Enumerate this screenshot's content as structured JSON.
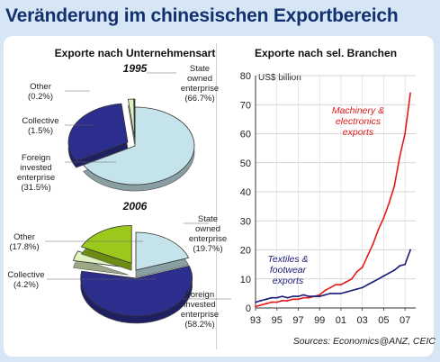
{
  "title": "Veränderung im chinesischen Exportbereich",
  "chart_data": [
    {
      "type": "pie",
      "title": "Exporte nach Unternehmensart",
      "subtitle": "1995",
      "slices": [
        {
          "label": [
            "State",
            "owned",
            "enterprise"
          ],
          "value": 66.7,
          "display": "(66.7%)",
          "color": "#c5e3ea",
          "exploded": false
        },
        {
          "label": [
            "Foreign",
            "invested",
            "enterprise"
          ],
          "value": 31.5,
          "display": "(31.5%)",
          "color": "#2b2e8c",
          "exploded": true
        },
        {
          "label": [
            "Collective"
          ],
          "value": 1.5,
          "display": "(1.5%)",
          "color": "#e0f2c0",
          "exploded": true
        },
        {
          "label": [
            "Other"
          ],
          "value": 0.2,
          "display": "(0.2%)",
          "color": "#9bc81c",
          "exploded": true
        }
      ]
    },
    {
      "type": "pie",
      "subtitle": "2006",
      "slices": [
        {
          "label": [
            "State",
            "owned",
            "enterprise"
          ],
          "value": 19.7,
          "display": "(19.7%)",
          "color": "#c5e3ea",
          "exploded": false
        },
        {
          "label": [
            "Foreign",
            "invested",
            "enterprise"
          ],
          "value": 58.2,
          "display": "(58.2%)",
          "color": "#2b2e8c",
          "exploded": true
        },
        {
          "label": [
            "Collective"
          ],
          "value": 4.2,
          "display": "(4.2%)",
          "color": "#e0f2c0",
          "exploded": true
        },
        {
          "label": [
            "Other"
          ],
          "value": 17.8,
          "display": "(17.8%)",
          "color": "#9bc81c",
          "exploded": true
        }
      ]
    },
    {
      "type": "line",
      "title": "Exporte nach sel. Branchen",
      "ylabel": "US$ billion",
      "ylim": [
        0,
        80
      ],
      "yticks": [
        0,
        10,
        20,
        30,
        40,
        50,
        60,
        70,
        80
      ],
      "xlim": [
        1993,
        2008
      ],
      "xticks": [
        {
          "v": 1993,
          "l": "93"
        },
        {
          "v": 1995,
          "l": "95"
        },
        {
          "v": 1997,
          "l": "97"
        },
        {
          "v": 1999,
          "l": "99"
        },
        {
          "v": 2001,
          "l": "01"
        },
        {
          "v": 2003,
          "l": "03"
        },
        {
          "v": 2005,
          "l": "05"
        },
        {
          "v": 2007,
          "l": "07"
        }
      ],
      "grid": true,
      "source": "Sources: Economics@ANZ, CEIC",
      "series": [
        {
          "name": [
            "Machinery &",
            "electronics",
            "exports"
          ],
          "color": "#e01b1b",
          "x": [
            1993,
            1993.5,
            1994,
            1994.5,
            1995,
            1995.5,
            1996,
            1996.5,
            1997,
            1997.5,
            1998,
            1998.5,
            1999,
            1999.5,
            2000,
            2000.5,
            2001,
            2001.5,
            2002,
            2002.5,
            2003,
            2003.5,
            2004,
            2004.5,
            2005,
            2005.5,
            2006,
            2006.5,
            2007,
            2007.5
          ],
          "y": [
            0.5,
            1.0,
            1.5,
            2.0,
            2.0,
            2.5,
            2.5,
            3.0,
            3.0,
            3.5,
            3.5,
            4.0,
            4.5,
            6.0,
            7.0,
            8.0,
            8.0,
            9.0,
            10.0,
            12.5,
            14.0,
            18.0,
            22.0,
            27.0,
            31.0,
            36.0,
            42.0,
            52.0,
            60.0,
            74.0
          ]
        },
        {
          "name": [
            "Textiles &",
            "footwear",
            "exports"
          ],
          "color": "#1a1a78",
          "x": [
            1993,
            1993.5,
            1994,
            1994.5,
            1995,
            1995.5,
            1996,
            1996.5,
            1997,
            1997.5,
            1998,
            1998.5,
            1999,
            1999.5,
            2000,
            2000.5,
            2001,
            2001.5,
            2002,
            2002.5,
            2003,
            2003.5,
            2004,
            2004.5,
            2005,
            2005.5,
            2006,
            2006.5,
            2007,
            2007.5
          ],
          "y": [
            2.0,
            2.5,
            3.0,
            3.5,
            3.5,
            4.0,
            3.5,
            4.0,
            4.0,
            4.5,
            4.0,
            4.0,
            4.0,
            4.5,
            5.0,
            5.0,
            5.0,
            5.5,
            6.0,
            6.5,
            7.0,
            8.0,
            9.0,
            10.0,
            11.0,
            12.0,
            13.0,
            14.5,
            15.0,
            20.0
          ]
        }
      ]
    }
  ]
}
